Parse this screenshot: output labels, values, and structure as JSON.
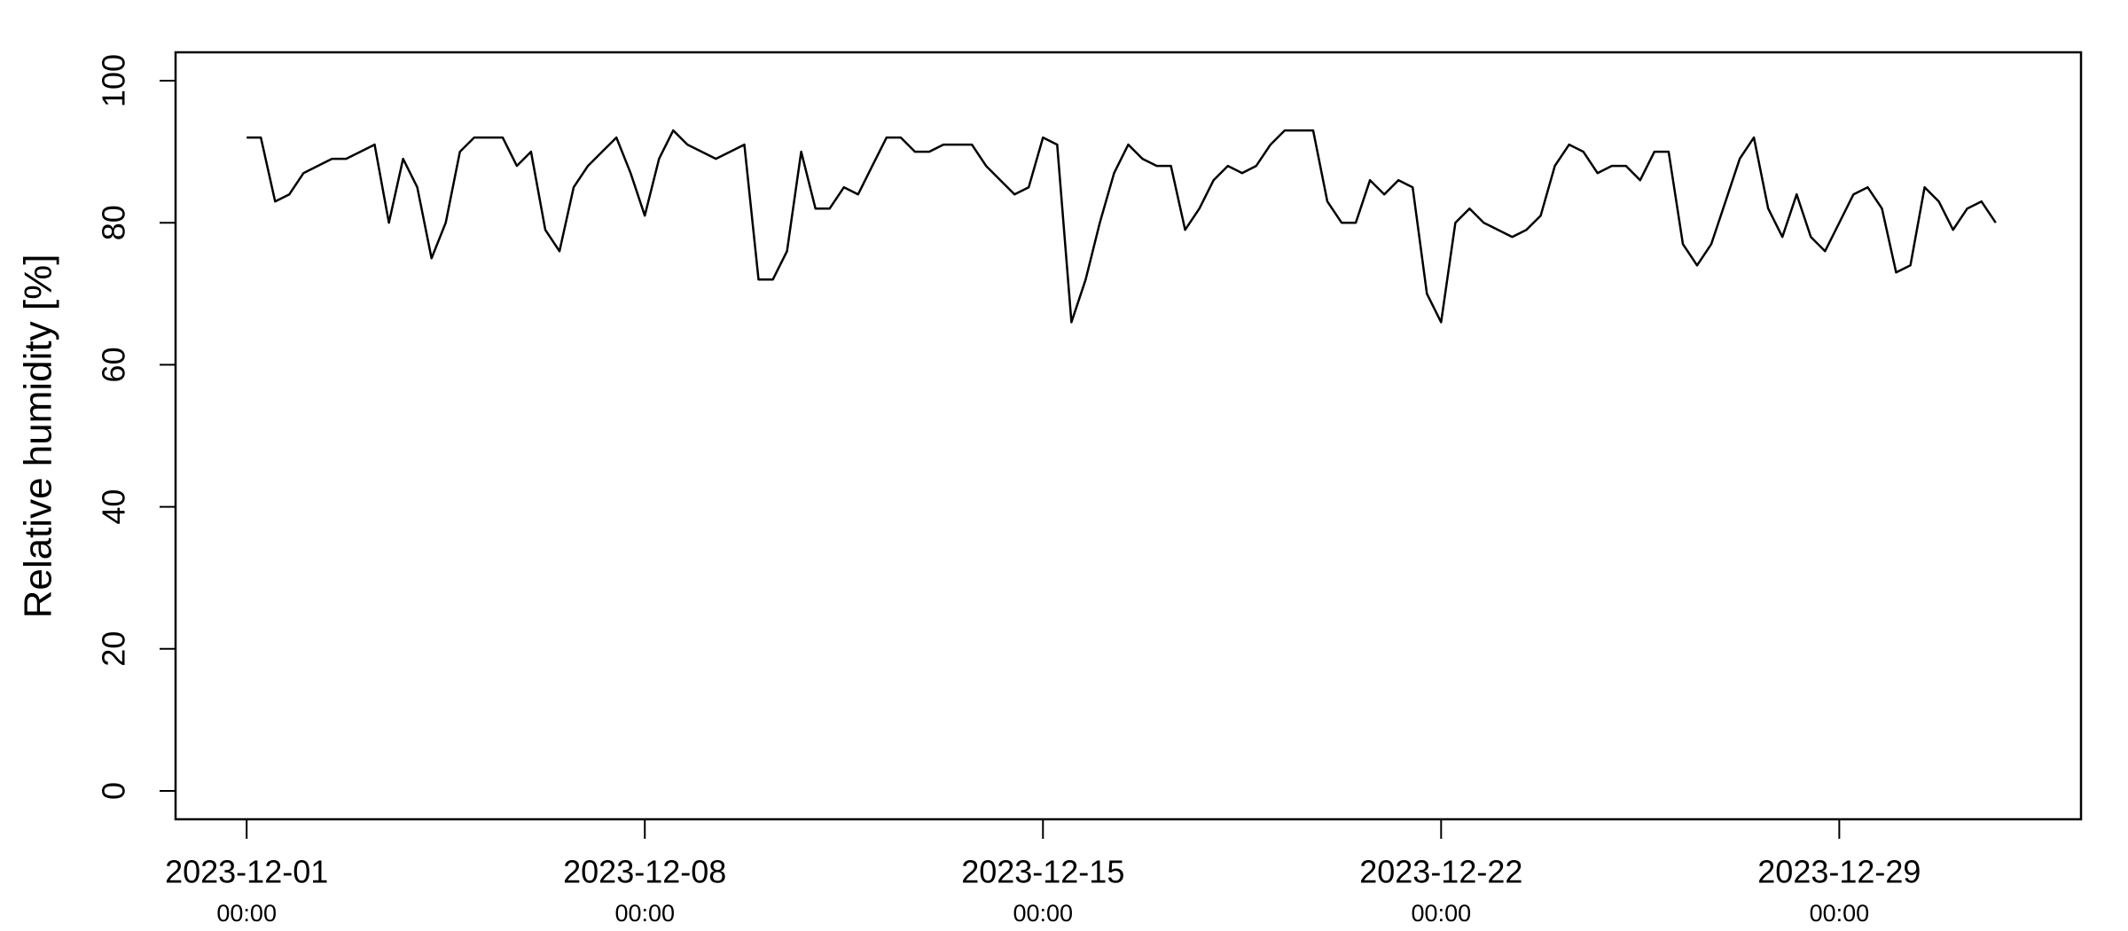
{
  "chart_data": {
    "type": "line",
    "ylabel": "Relative humidity [%]",
    "color": "#000000",
    "grid": false,
    "x": [
      "2023-12-01 00:00",
      "2023-12-01 06:00",
      "2023-12-01 12:00",
      "2023-12-01 18:00",
      "2023-12-02 00:00",
      "2023-12-02 06:00",
      "2023-12-02 12:00",
      "2023-12-02 18:00",
      "2023-12-03 00:00",
      "2023-12-03 06:00",
      "2023-12-03 12:00",
      "2023-12-03 18:00",
      "2023-12-04 00:00",
      "2023-12-04 06:00",
      "2023-12-04 12:00",
      "2023-12-04 18:00",
      "2023-12-05 00:00",
      "2023-12-05 06:00",
      "2023-12-05 12:00",
      "2023-12-05 18:00",
      "2023-12-06 00:00",
      "2023-12-06 06:00",
      "2023-12-06 12:00",
      "2023-12-06 18:00",
      "2023-12-07 00:00",
      "2023-12-07 06:00",
      "2023-12-07 12:00",
      "2023-12-07 18:00",
      "2023-12-08 00:00",
      "2023-12-08 06:00",
      "2023-12-08 12:00",
      "2023-12-08 18:00",
      "2023-12-09 00:00",
      "2023-12-09 06:00",
      "2023-12-09 12:00",
      "2023-12-09 18:00",
      "2023-12-10 00:00",
      "2023-12-10 06:00",
      "2023-12-10 12:00",
      "2023-12-10 18:00",
      "2023-12-11 00:00",
      "2023-12-11 06:00",
      "2023-12-11 12:00",
      "2023-12-11 18:00",
      "2023-12-12 00:00",
      "2023-12-12 06:00",
      "2023-12-12 12:00",
      "2023-12-12 18:00",
      "2023-12-13 00:00",
      "2023-12-13 06:00",
      "2023-12-13 12:00",
      "2023-12-13 18:00",
      "2023-12-14 00:00",
      "2023-12-14 06:00",
      "2023-12-14 12:00",
      "2023-12-14 18:00",
      "2023-12-15 00:00",
      "2023-12-15 06:00",
      "2023-12-15 12:00",
      "2023-12-15 18:00",
      "2023-12-16 00:00",
      "2023-12-16 06:00",
      "2023-12-16 12:00",
      "2023-12-16 18:00",
      "2023-12-17 00:00",
      "2023-12-17 06:00",
      "2023-12-17 12:00",
      "2023-12-17 18:00",
      "2023-12-18 00:00",
      "2023-12-18 06:00",
      "2023-12-18 12:00",
      "2023-12-18 18:00",
      "2023-12-19 00:00",
      "2023-12-19 06:00",
      "2023-12-19 12:00",
      "2023-12-19 18:00",
      "2023-12-20 00:00",
      "2023-12-20 06:00",
      "2023-12-20 12:00",
      "2023-12-20 18:00",
      "2023-12-21 00:00",
      "2023-12-21 06:00",
      "2023-12-21 12:00",
      "2023-12-21 18:00",
      "2023-12-22 00:00",
      "2023-12-22 06:00",
      "2023-12-22 12:00",
      "2023-12-22 18:00",
      "2023-12-23 00:00",
      "2023-12-23 06:00",
      "2023-12-23 12:00",
      "2023-12-23 18:00",
      "2023-12-24 00:00",
      "2023-12-24 06:00",
      "2023-12-24 12:00",
      "2023-12-24 18:00",
      "2023-12-25 00:00",
      "2023-12-25 06:00",
      "2023-12-25 12:00",
      "2023-12-25 18:00",
      "2023-12-26 00:00",
      "2023-12-26 06:00",
      "2023-12-26 12:00",
      "2023-12-26 18:00",
      "2023-12-27 00:00",
      "2023-12-27 06:00",
      "2023-12-27 12:00",
      "2023-12-27 18:00",
      "2023-12-28 00:00",
      "2023-12-28 06:00",
      "2023-12-28 12:00",
      "2023-12-28 18:00",
      "2023-12-29 00:00",
      "2023-12-29 06:00",
      "2023-12-29 12:00",
      "2023-12-29 18:00",
      "2023-12-30 00:00",
      "2023-12-30 06:00",
      "2023-12-30 12:00",
      "2023-12-30 18:00",
      "2023-12-31 00:00",
      "2023-12-31 06:00",
      "2023-12-31 12:00",
      "2023-12-31 18:00"
    ],
    "values": [
      92,
      92,
      83,
      84,
      87,
      88,
      89,
      89,
      90,
      91,
      80,
      89,
      85,
      75,
      80,
      90,
      92,
      92,
      92,
      88,
      90,
      79,
      76,
      85,
      88,
      90,
      92,
      87,
      81,
      89,
      93,
      91,
      90,
      89,
      90,
      91,
      72,
      72,
      76,
      90,
      82,
      82,
      85,
      84,
      88,
      92,
      92,
      90,
      90,
      91,
      91,
      91,
      88,
      86,
      84,
      85,
      92,
      91,
      66,
      72,
      80,
      87,
      91,
      89,
      88,
      88,
      79,
      82,
      86,
      88,
      87,
      88,
      91,
      93,
      93,
      93,
      83,
      80,
      80,
      86,
      84,
      86,
      85,
      70,
      66,
      80,
      82,
      80,
      79,
      78,
      79,
      81,
      88,
      91,
      90,
      87,
      88,
      88,
      86,
      90,
      90,
      77,
      74,
      77,
      83,
      89,
      92,
      82,
      78,
      84,
      78,
      76,
      80,
      84,
      85,
      82,
      73,
      74,
      85,
      83,
      79,
      82,
      83,
      80
    ],
    "xlim": [
      "2023-11-29 18:00",
      "2024-01-02 06:00"
    ],
    "xticks": [
      {
        "value": "2023-12-01 00:00",
        "label": [
          "2023-12-01",
          "00:00"
        ]
      },
      {
        "value": "2023-12-08 00:00",
        "label": [
          "2023-12-08",
          "00:00"
        ]
      },
      {
        "value": "2023-12-15 00:00",
        "label": [
          "2023-12-15",
          "00:00"
        ]
      },
      {
        "value": "2023-12-22 00:00",
        "label": [
          "2023-12-22",
          "00:00"
        ]
      },
      {
        "value": "2023-12-29 00:00",
        "label": [
          "2023-12-29",
          "00:00"
        ]
      }
    ],
    "ylim": [
      -4,
      104
    ],
    "yticks": [
      0,
      20,
      40,
      60,
      80,
      100
    ]
  }
}
